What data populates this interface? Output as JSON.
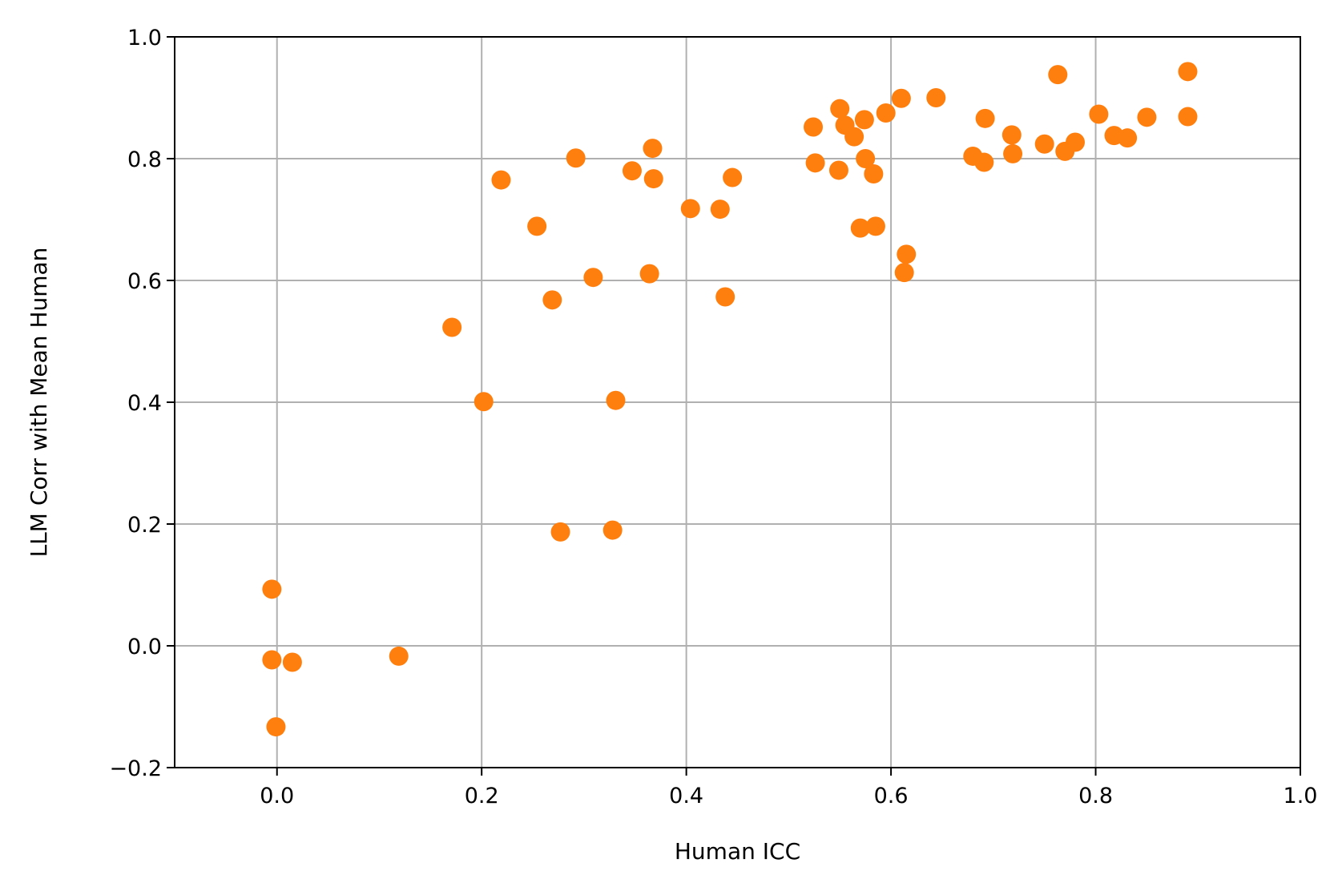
{
  "chart_data": {
    "type": "scatter",
    "title": "",
    "xlabel": "Human ICC",
    "ylabel": "LLM Corr with Mean Human",
    "xlim": [
      -0.1,
      1.0
    ],
    "ylim": [
      -0.2,
      1.0
    ],
    "x_ticks": [
      0.0,
      0.2,
      0.4,
      0.6,
      0.8,
      1.0
    ],
    "x_tick_labels": [
      "0.0",
      "0.2",
      "0.4",
      "0.6",
      "0.8",
      "1.0"
    ],
    "y_ticks": [
      -0.2,
      0.0,
      0.2,
      0.4,
      0.6,
      0.8,
      1.0
    ],
    "y_tick_labels": [
      "−0.2",
      "0.0",
      "0.2",
      "0.4",
      "0.6",
      "0.8",
      "1.0"
    ],
    "grid": true,
    "color": "#ff7f0e",
    "series": [
      {
        "x": [
          -0.005,
          -0.005,
          0.015,
          -0.001,
          0.119,
          0.171,
          0.202,
          0.219,
          0.254,
          0.269,
          0.277,
          0.292,
          0.309,
          0.328,
          0.331,
          0.347,
          0.364,
          0.367,
          0.368,
          0.404,
          0.433,
          0.438,
          0.445,
          0.524,
          0.526,
          0.549,
          0.55,
          0.555,
          0.564,
          0.57,
          0.574,
          0.575,
          0.583,
          0.585,
          0.595,
          0.61,
          0.613,
          0.615,
          0.644,
          0.68,
          0.691,
          0.692,
          0.718,
          0.719,
          0.75,
          0.763,
          0.77,
          0.78,
          0.803,
          0.818,
          0.831,
          0.85,
          0.89,
          0.89
        ],
        "y": [
          0.093,
          -0.023,
          -0.027,
          -0.133,
          -0.017,
          0.523,
          0.401,
          0.765,
          0.689,
          0.568,
          0.187,
          0.801,
          0.605,
          0.19,
          0.403,
          0.78,
          0.611,
          0.817,
          0.767,
          0.718,
          0.717,
          0.573,
          0.769,
          0.852,
          0.793,
          0.781,
          0.882,
          0.855,
          0.836,
          0.686,
          0.864,
          0.8,
          0.775,
          0.689,
          0.875,
          0.899,
          0.613,
          0.643,
          0.9,
          0.804,
          0.794,
          0.866,
          0.839,
          0.808,
          0.824,
          0.938,
          0.812,
          0.827,
          0.873,
          0.838,
          0.834,
          0.868,
          0.869,
          0.943
        ]
      }
    ]
  }
}
